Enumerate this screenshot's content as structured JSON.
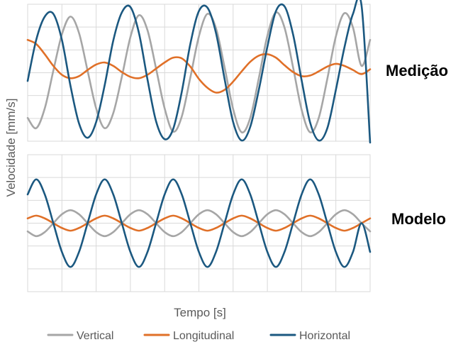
{
  "chart_data": [
    {
      "type": "line",
      "panel_label": "Medição",
      "title": "",
      "xlabel": "Tempo [s]",
      "ylabel": "Velocidade [mm/s]",
      "grid": true,
      "tick_labels_shown": false,
      "x": [
        0,
        0.25,
        0.5,
        0.75,
        1,
        1.25,
        1.5,
        1.75,
        2,
        2.25,
        2.5,
        2.75,
        3,
        3.25,
        3.5,
        3.75,
        4,
        4.25,
        4.5,
        4.75,
        5,
        5.25,
        5.5,
        5.75,
        6,
        6.25,
        6.5,
        6.75,
        7,
        7.25,
        7.5,
        7.75,
        8,
        8.25,
        8.5,
        8.75,
        9,
        9.25,
        9.5,
        9.75,
        10
      ],
      "ylim": [
        -1,
        1
      ],
      "series": [
        {
          "name": "Vertical",
          "color": "#a6a6a6",
          "values": [
            -0.66,
            -0.81,
            -0.52,
            0.03,
            0.56,
            0.82,
            0.58,
            0.03,
            -0.52,
            -0.81,
            -0.59,
            -0.06,
            0.52,
            0.84,
            0.62,
            0.06,
            -0.52,
            -0.86,
            -0.64,
            -0.07,
            0.53,
            0.86,
            0.65,
            0.08,
            -0.53,
            -0.87,
            -0.66,
            -0.08,
            0.54,
            0.88,
            0.66,
            0.08,
            -0.54,
            -0.87,
            -0.66,
            -0.09,
            0.53,
            0.87,
            0.66,
            0.1,
            0.48
          ]
        },
        {
          "name": "Longitudinal",
          "color": "#e07028",
          "values": [
            0.48,
            0.42,
            0.27,
            0.1,
            -0.03,
            -0.08,
            -0.05,
            0.04,
            0.12,
            0.15,
            0.1,
            0.01,
            -0.06,
            -0.08,
            -0.03,
            0.06,
            0.15,
            0.22,
            0.21,
            0.09,
            -0.09,
            -0.22,
            -0.29,
            -0.25,
            -0.13,
            0.02,
            0.16,
            0.25,
            0.27,
            0.22,
            0.11,
            0.01,
            -0.05,
            -0.04,
            0.02,
            0.09,
            0.13,
            0.1,
            0.04,
            -0.02,
            0.05
          ]
        },
        {
          "name": "Horizontal",
          "color": "#1b5880",
          "values": [
            -0.12,
            0.48,
            0.82,
            0.86,
            0.48,
            -0.19,
            -0.74,
            -0.95,
            -0.72,
            -0.18,
            0.47,
            0.88,
            0.96,
            0.58,
            -0.1,
            -0.71,
            -0.97,
            -0.82,
            -0.28,
            0.42,
            0.9,
            0.95,
            0.58,
            -0.09,
            -0.72,
            -0.99,
            -0.79,
            -0.25,
            0.38,
            0.9,
            0.97,
            0.56,
            -0.11,
            -0.73,
            -0.99,
            -0.81,
            -0.25,
            0.37,
            0.86,
            0.98,
            -1.02
          ]
        }
      ]
    },
    {
      "type": "line",
      "panel_label": "Modelo",
      "title": "",
      "xlabel": "Tempo [s]",
      "ylabel": "Velocidade [mm/s]",
      "grid": true,
      "tick_labels_shown": false,
      "x": [
        0,
        0.25,
        0.5,
        0.75,
        1,
        1.25,
        1.5,
        1.75,
        2,
        2.25,
        2.5,
        2.75,
        3,
        3.25,
        3.5,
        3.75,
        4,
        4.25,
        4.5,
        4.75,
        5,
        5.25,
        5.5,
        5.75,
        6,
        6.25,
        6.5,
        6.75,
        7,
        7.25,
        7.5,
        7.75,
        8,
        8.25,
        8.5,
        8.75,
        9,
        9.25,
        9.5,
        9.75,
        10
      ],
      "ylim": [
        -1,
        1
      ],
      "series": [
        {
          "name": "Vertical",
          "color": "#a6a6a6",
          "values": [
            -0.12,
            -0.19,
            -0.13,
            0.0,
            0.13,
            0.19,
            0.13,
            0.0,
            -0.13,
            -0.19,
            -0.13,
            0.0,
            0.13,
            0.19,
            0.13,
            0.0,
            -0.13,
            -0.19,
            -0.13,
            0.0,
            0.13,
            0.19,
            0.13,
            0.0,
            -0.13,
            -0.19,
            -0.13,
            0.0,
            0.13,
            0.19,
            0.13,
            0.0,
            -0.13,
            -0.19,
            -0.13,
            0.0,
            0.13,
            0.19,
            0.13,
            0.0,
            -0.12
          ]
        },
        {
          "name": "Longitudinal",
          "color": "#e07028",
          "values": [
            0.07,
            0.11,
            0.07,
            0.0,
            -0.07,
            -0.11,
            -0.07,
            0.0,
            0.07,
            0.11,
            0.07,
            0.0,
            -0.07,
            -0.11,
            -0.07,
            0.0,
            0.07,
            0.11,
            0.07,
            0.0,
            -0.07,
            -0.11,
            -0.07,
            0.0,
            0.07,
            0.11,
            0.07,
            0.0,
            -0.07,
            -0.11,
            -0.07,
            0.0,
            0.07,
            0.11,
            0.07,
            0.0,
            -0.07,
            -0.11,
            -0.07,
            0.0,
            0.07
          ]
        },
        {
          "name": "Horizontal",
          "color": "#1b5880",
          "values": [
            0.42,
            0.64,
            0.42,
            0.0,
            -0.42,
            -0.64,
            -0.42,
            0.0,
            0.42,
            0.64,
            0.42,
            0.0,
            -0.42,
            -0.64,
            -0.42,
            0.0,
            0.42,
            0.64,
            0.42,
            0.0,
            -0.42,
            -0.64,
            -0.42,
            0.0,
            0.42,
            0.64,
            0.42,
            0.0,
            -0.42,
            -0.64,
            -0.42,
            0.0,
            0.42,
            0.64,
            0.42,
            0.0,
            -0.42,
            -0.64,
            -0.42,
            0.0,
            -0.42
          ]
        }
      ]
    }
  ],
  "shared": {
    "ylabel": "Velocidade [mm/s]",
    "xlabel": "Tempo [s]",
    "legend_position": "bottom",
    "legend": [
      {
        "label": "Vertical",
        "color": "#a6a6a6"
      },
      {
        "label": "Longitudinal",
        "color": "#e07028"
      },
      {
        "label": "Horizontal",
        "color": "#1b5880"
      }
    ]
  }
}
